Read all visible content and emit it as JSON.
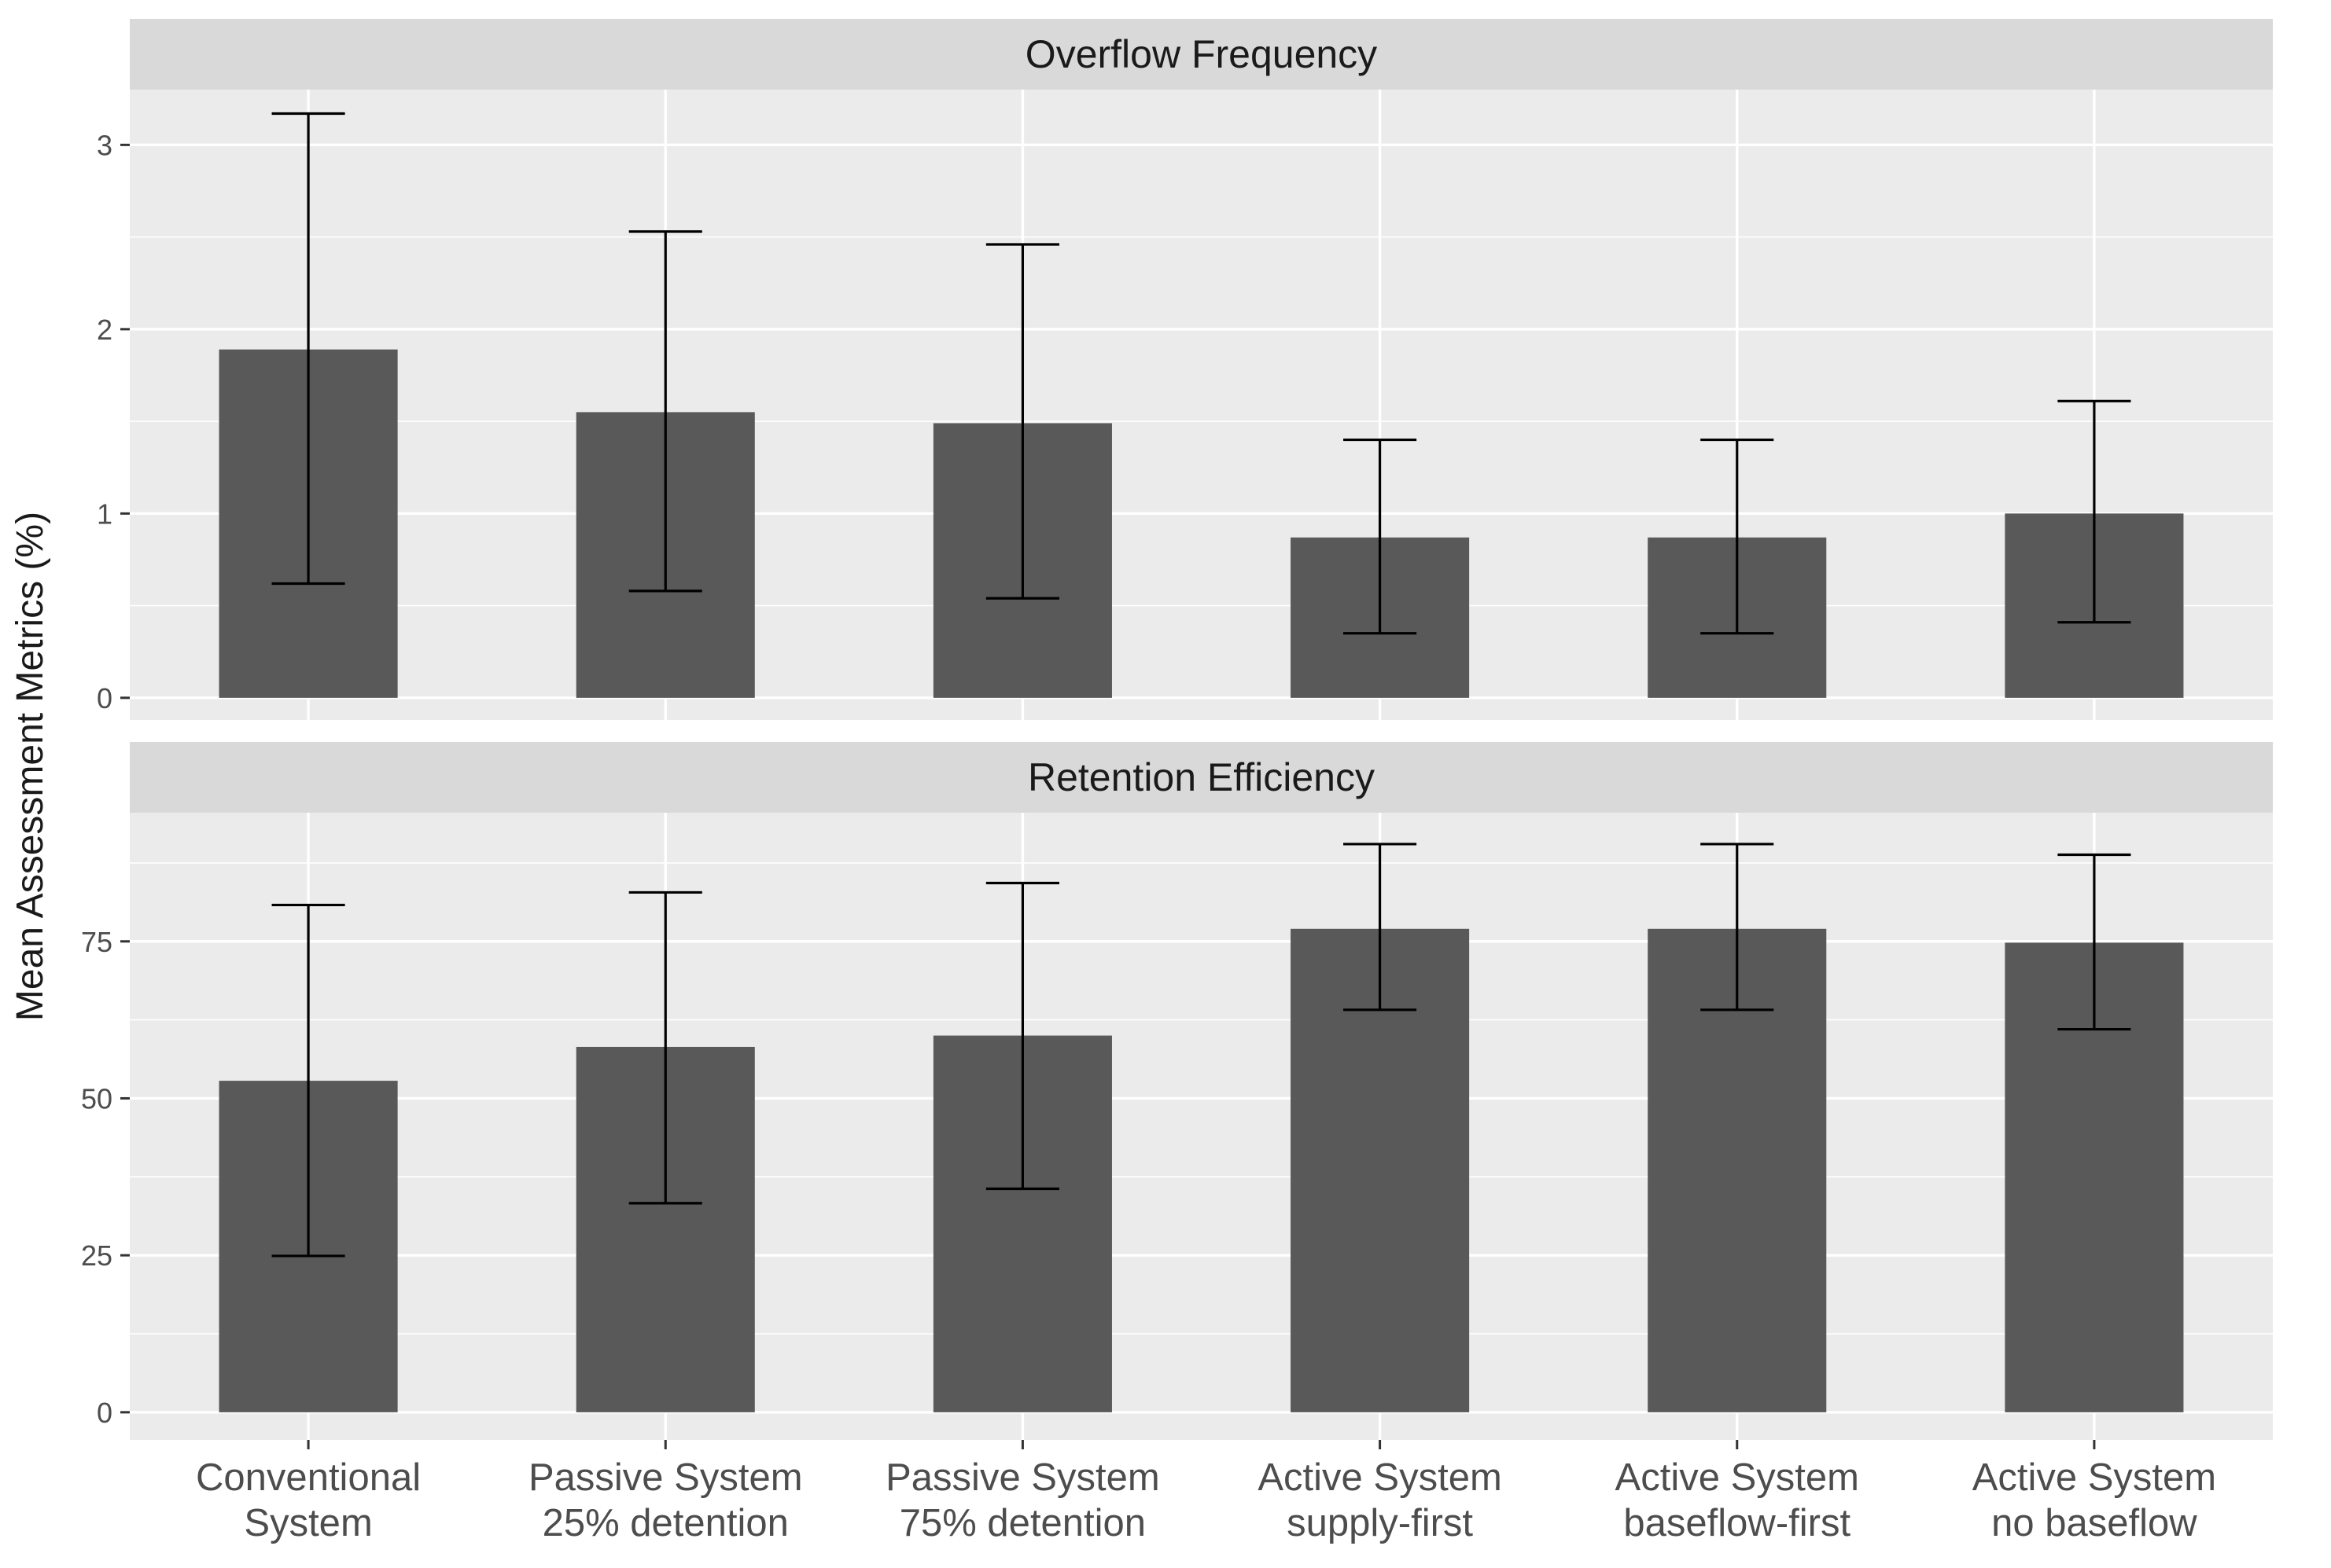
{
  "chart_data": {
    "type": "bar",
    "ylabel": "Mean Assessment Metrics (%)",
    "xlabel": "",
    "categories": [
      [
        "Conventional",
        "System"
      ],
      [
        "Passive System",
        "25% detention"
      ],
      [
        "Passive System",
        "75% detention"
      ],
      [
        "Active System",
        "supply-first"
      ],
      [
        "Active System",
        "baseflow-first"
      ],
      [
        "Active System",
        "no baseflow"
      ]
    ],
    "panels": [
      {
        "title": "Overflow Frequency",
        "ylim": [
          -0.12,
          3.3
        ],
        "yticks": [
          0,
          1,
          2,
          3
        ],
        "tick_labels": [
          "0",
          "1",
          "2",
          "3"
        ],
        "values": [
          1.89,
          1.55,
          1.49,
          0.87,
          0.87,
          1.0
        ],
        "error_low": [
          0.62,
          0.58,
          0.54,
          0.35,
          0.35,
          0.41
        ],
        "error_high": [
          3.17,
          2.53,
          2.46,
          1.4,
          1.4,
          1.61
        ]
      },
      {
        "title": "Retention Efficiency",
        "ylim": [
          -4.4,
          95.5
        ],
        "yticks": [
          0,
          25,
          50,
          75
        ],
        "tick_labels": [
          "0",
          "25",
          "50",
          "75"
        ],
        "values": [
          52.8,
          58.2,
          60.0,
          77.0,
          77.0,
          74.8
        ],
        "error_low": [
          24.9,
          33.3,
          35.6,
          64.1,
          64.1,
          61.0
        ],
        "error_high": [
          80.8,
          82.8,
          84.3,
          90.5,
          90.5,
          88.8
        ]
      }
    ],
    "colors": {
      "bar": "#595959",
      "panel_background": "#ebebeb",
      "strip_background": "#d9d9d9",
      "grid": "#ffffff",
      "error_bar": "#000000",
      "text": "#1a1a1a",
      "tick_text": "#4d4d4d",
      "tick_mark": "#333333"
    }
  }
}
